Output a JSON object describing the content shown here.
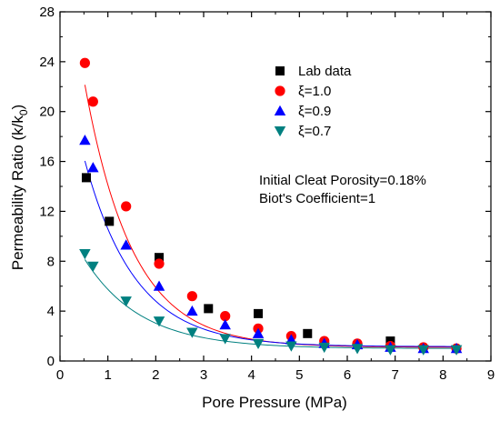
{
  "chart_data": {
    "type": "scatter",
    "xlabel": "Pore Pressure (MPa)",
    "ylabel_main": "Permeability Ratio (k/k",
    "ylabel_sub": "0",
    "ylabel_close": ")",
    "xlim": [
      0,
      9
    ],
    "ylim": [
      0,
      28
    ],
    "xticks": [
      "0",
      "1",
      "2",
      "3",
      "4",
      "5",
      "6",
      "7",
      "8",
      "9"
    ],
    "yticks": [
      "0",
      "4",
      "8",
      "12",
      "16",
      "20",
      "24",
      "28"
    ],
    "legend_position": "top-right",
    "annotations": [
      "Initial Cleat Porosity=0.18%",
      "Biot's Coefficient=1"
    ],
    "series": [
      {
        "name": "Lab data",
        "marker": "square",
        "color": "#000000",
        "x": [
          0.55,
          1.03,
          2.07,
          3.1,
          4.14,
          5.17,
          6.9
        ],
        "y": [
          14.7,
          11.2,
          8.3,
          4.2,
          3.8,
          2.2,
          1.6
        ]
      },
      {
        "name": "ξ=1.0",
        "marker": "circle",
        "color": "#ff0000",
        "x": [
          0.52,
          0.69,
          1.38,
          2.07,
          2.76,
          3.45,
          4.14,
          4.83,
          5.52,
          6.21,
          6.9,
          7.59,
          8.28
        ],
        "y": [
          23.9,
          20.8,
          12.4,
          7.8,
          5.2,
          3.6,
          2.6,
          2.0,
          1.6,
          1.4,
          1.2,
          1.1,
          1.0
        ],
        "fit": {
          "a": 1.1,
          "b": 35.4,
          "k": 1.0
        }
      },
      {
        "name": "ξ=0.9",
        "marker": "triangle-up",
        "color": "#0000ff",
        "x": [
          0.52,
          0.69,
          1.38,
          2.07,
          2.76,
          3.45,
          4.14,
          4.83,
          5.52,
          6.21,
          6.9,
          7.59,
          8.28
        ],
        "y": [
          17.7,
          15.5,
          9.3,
          6.0,
          4.0,
          2.9,
          2.2,
          1.7,
          1.4,
          1.3,
          1.1,
          1.0,
          1.0
        ],
        "fit": {
          "a": 1.15,
          "b": 24.4,
          "k": 0.95
        }
      },
      {
        "name": "ξ=0.7",
        "marker": "triangle-down",
        "color": "#008080",
        "x": [
          0.52,
          0.69,
          1.38,
          2.07,
          2.76,
          3.45,
          4.14,
          4.83,
          5.52,
          6.21,
          6.9,
          7.59,
          8.28
        ],
        "y": [
          8.6,
          7.6,
          4.8,
          3.2,
          2.3,
          1.8,
          1.4,
          1.2,
          1.1,
          1.0,
          0.9,
          0.9,
          0.9
        ],
        "fit": {
          "a": 1.0,
          "b": 11.1,
          "k": 0.85
        }
      }
    ]
  }
}
